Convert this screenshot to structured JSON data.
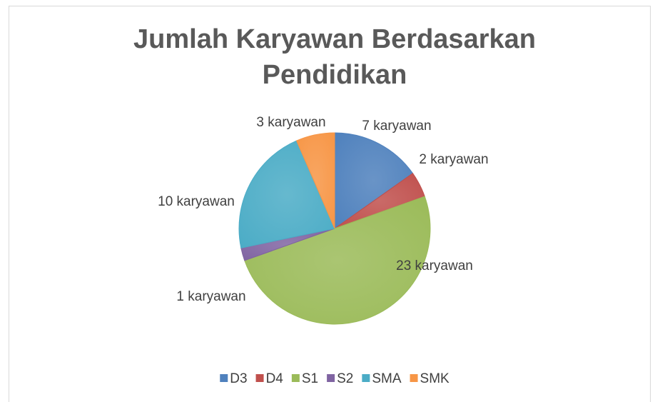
{
  "chart_data": {
    "type": "pie",
    "title": "Jumlah Karyawan Berdasarkan Pendidikan",
    "categories": [
      "D3",
      "D4",
      "S1",
      "S2",
      "SMA",
      "SMK"
    ],
    "values": [
      7,
      2,
      23,
      1,
      10,
      3
    ],
    "value_labels": [
      "7 karyawan",
      "2 karyawan",
      "23 karyawan",
      "1 karyawan",
      "10 karyawan",
      "3 karyawan"
    ],
    "colors": [
      "#4f81bd",
      "#c0504d",
      "#9bbb59",
      "#8064a2",
      "#4bacc6",
      "#f79646"
    ],
    "legend": "bottom"
  }
}
